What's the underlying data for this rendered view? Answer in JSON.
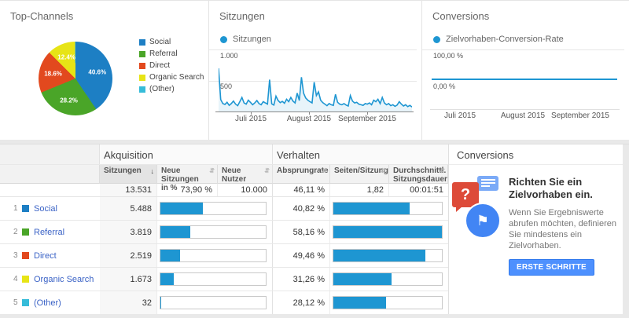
{
  "colors": {
    "blue": "#1d7fc4",
    "green": "#4aa528",
    "red": "#e2491e",
    "yellow": "#e7e416",
    "cyan": "#36bcd9",
    "bar": "#1e96d2",
    "line": "#1e96d2",
    "area": "rgba(30,150,210,0.10)",
    "button": "#4d90fe"
  },
  "icons": {
    "sort_desc": "↓",
    "sort_both": "⇵",
    "flag": "⚑",
    "question": "?"
  },
  "cards": {
    "top_channels": {
      "title": "Top-Channels"
    },
    "sessions": {
      "title": "Sitzungen",
      "legend": "Sitzungen",
      "y_top": "1.000",
      "y_mid": "500",
      "x_ticks": [
        "Juli 2015",
        "August 2015",
        "September 2015"
      ]
    },
    "conversions": {
      "title": "Conversions",
      "legend": "Zielvorhaben-Conversion-Rate",
      "y_top": "100,00 %",
      "y_zero": "0,00 %",
      "x_ticks": [
        "Juli 2015",
        "August 2015",
        "September 2015"
      ]
    }
  },
  "chart_data": [
    {
      "id": "channels-pie",
      "type": "pie",
      "title": "Top-Channels",
      "labels": [
        "Social",
        "Referral",
        "Direct",
        "Organic Search",
        "(Other)"
      ],
      "values": [
        40.6,
        28.2,
        18.6,
        12.4,
        0.2
      ],
      "display_labels": [
        "40.6%",
        "28.2%",
        "18.6%",
        "12.4%",
        ""
      ],
      "colors": [
        "#1d7fc4",
        "#4aa528",
        "#e2491e",
        "#e7e416",
        "#36bcd9"
      ],
      "legend_position": "right"
    },
    {
      "id": "sessions-line",
      "type": "line",
      "title": "Sitzungen",
      "ylim": [
        0,
        1000
      ],
      "y_ticks": [
        1000,
        500
      ],
      "grid": true,
      "x_tick_labels": [
        "Juli 2015",
        "August 2015",
        "September 2015"
      ],
      "series": [
        {
          "name": "Sitzungen",
          "values": [
            705,
            195,
            130,
            115,
            150,
            100,
            130,
            170,
            120,
            95,
            160,
            230,
            140,
            120,
            185,
            150,
            110,
            140,
            180,
            130,
            110,
            160,
            140,
            120,
            520,
            125,
            105,
            250,
            180,
            145,
            165,
            135,
            200,
            160,
            230,
            170,
            140,
            300,
            180,
            560,
            300,
            220,
            185,
            160,
            140,
            480,
            260,
            320,
            185,
            145,
            120,
            95,
            130,
            110,
            100,
            280,
            150,
            120,
            110,
            130,
            105,
            90,
            260,
            170,
            140,
            150,
            120,
            110,
            100,
            130,
            120,
            140,
            110,
            185,
            160,
            200,
            130,
            230,
            140,
            110,
            130,
            95,
            110,
            85,
            105,
            160,
            120,
            90,
            110,
            80,
            100,
            75
          ]
        }
      ]
    },
    {
      "id": "conversion-rate-line",
      "type": "line",
      "title": "Conversions",
      "ylim": [
        0,
        100
      ],
      "y_tick_labels": [
        "100,00 %",
        "0,00 %"
      ],
      "x_tick_labels": [
        "Juli 2015",
        "August 2015",
        "September 2015"
      ],
      "series": [
        {
          "name": "Zielvorhaben-Conversion-Rate",
          "values": [
            0,
            0
          ]
        }
      ]
    }
  ],
  "table": {
    "group_acquisition": "Akquisition",
    "group_behavior": "Verhalten",
    "col_sessions": "Sitzungen",
    "col_new_sessions": "Neue Sitzungen in %",
    "col_new_users": "Neue Nutzer",
    "col_bounce": "Absprungrate",
    "col_pages": "Seiten/Sitzung",
    "col_duration": "Durchschnittl. Sitzungsdauer",
    "totals": {
      "sessions": "13.531",
      "new_sessions": "73,90 %",
      "new_users": "10.000",
      "bounce": "46,11 %",
      "pages": "1,82",
      "duration": "00:01:51"
    },
    "sessions_total_num": 13531,
    "bounce_max_num": 58.16,
    "rows": [
      {
        "rank": "1",
        "channel": "Social",
        "color": "#1d7fc4",
        "sessions": "5.488",
        "sessions_num": 5488,
        "bounce": "40,82 %",
        "bounce_num": 40.82
      },
      {
        "rank": "2",
        "channel": "Referral",
        "color": "#4aa528",
        "sessions": "3.819",
        "sessions_num": 3819,
        "bounce": "58,16 %",
        "bounce_num": 58.16
      },
      {
        "rank": "3",
        "channel": "Direct",
        "color": "#e2491e",
        "sessions": "2.519",
        "sessions_num": 2519,
        "bounce": "49,46 %",
        "bounce_num": 49.46
      },
      {
        "rank": "4",
        "channel": "Organic Search",
        "color": "#e7e416",
        "sessions": "1.673",
        "sessions_num": 1673,
        "bounce": "31,26 %",
        "bounce_num": 31.26
      },
      {
        "rank": "5",
        "channel": "(Other)",
        "color": "#36bcd9",
        "sessions": "32",
        "sessions_num": 32,
        "bounce": "28,12 %",
        "bounce_num": 28.12
      }
    ]
  },
  "goal_panel": {
    "title": "Conversions",
    "heading": "Richten Sie ein Zielvorhaben ein.",
    "body": "Wenn Sie Ergebniswerte abrufen möchten, definieren Sie mindestens ein Zielvorhaben.",
    "button": "ERSTE SCHRITTE"
  }
}
